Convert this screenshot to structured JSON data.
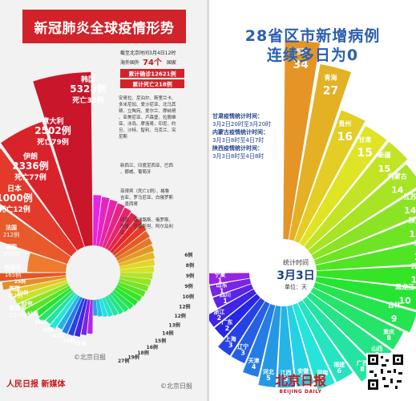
{
  "left": {
    "title": "新冠肺炎全球疫情形势",
    "info_line1": "截至北京时间3月4日12时",
    "info_line2_prefix": "海外国外",
    "info_line2_count": "74个",
    "info_line2_suffix": "国家",
    "total_confirmed": "累计确诊12621例",
    "total_deaths": "累计死亡218例",
    "note_small_countries": "安哥拉、尼泊尔、斯里兰卡、多米尼加、爱沙尼亚、北马其顿、立陶宛、爱尔兰、摩纳哥、亚美尼亚、卢森堡、拉脱维亚、冰岛、摩洛哥、印尼、约旦、沙特、智利、乌克兰、突尼斯",
    "note_group1": "新西兰、印度尼西亚、巴西、挪威、葡萄牙",
    "note_group2": "菲律宾（死亡1例）、格鲁吉亚、罗马尼亚、白俄罗斯、墨西哥",
    "note_group3": "印度、塞浦路斯、俄罗斯、丹麦、巴基斯坦、阿尔及利亚",
    "watermark1": "©北京日报",
    "logo_text": "人民日报 新媒体",
    "colors": {
      "title_bg": "#d2232a"
    }
  },
  "right": {
    "title_line1": "28省区市新增病例",
    "title_line2": "连续多日为0",
    "note_gansu": "甘肃疫情统计时间：",
    "note_gansu_time": "3月2日20时至3月20时",
    "note_nmg": "内蒙古疫情统计时间：",
    "note_nmg_time": "3月3日8时至4日7时",
    "note_sx": "陕西疫情统计时间：",
    "note_sx_time": "3月3日8时至4日8时",
    "center_label": "统计时间",
    "center_date": "3月3日",
    "center_unit": "单位：天",
    "logo_name": "北京日报",
    "logo_en": "BEIJING DAILY",
    "watermark": "©北京日报"
  },
  "chart_data": [
    {
      "type": "bar",
      "subtype": "polar-rose",
      "title": "新冠肺炎全球疫情形势",
      "categories": [
        "韩国",
        "意大利",
        "伊朗",
        "日本",
        "法国",
        "德国",
        "西班牙",
        "美国",
        "新加坡",
        "中国香港",
        "瑞士",
        "英国",
        "科威特",
        "泰国",
        "巴林",
        "马来西亚",
        "澳大利亚",
        "挪威",
        "荷兰",
        "瑞典",
        "卡塔尔"
      ],
      "values": [
        5328,
        2502,
        2336,
        1000,
        212,
        196,
        165,
        122,
        110,
        100,
        90,
        51,
        56,
        43,
        49,
        36,
        41,
        40,
        38,
        30,
        25
      ],
      "labels": [
        "韩国\n5328例\n死亡33例",
        "意大利\n2502例\n死亡79例",
        "伊朗\n2336例\n死亡77例",
        "日本\n1000例\n死亡12例",
        "法国\n212例",
        "德国\n196例",
        "西班牙\n165例",
        "美国\n122例",
        "新加坡\n110例",
        "中国香港",
        "瑞士",
        "英国",
        "51例",
        "56例",
        "43例",
        "49例",
        "36例",
        "41例",
        "40例",
        "30例",
        "25例"
      ],
      "outer_labels": [
        "6例",
        "8例",
        "9例",
        "9例",
        "10例",
        "12例",
        "12例",
        "13例",
        "14例",
        "15例",
        "16例",
        "18例",
        "19例",
        "27例"
      ]
    },
    {
      "type": "bar",
      "subtype": "polar-rose",
      "title": "28省区市新增病例连续多日为0",
      "unit": "天",
      "categories": [
        "西藏",
        "青海",
        "贵州",
        "甘肃",
        "新疆",
        "内蒙古",
        "江苏",
        "陕西",
        "海南",
        "云南",
        "黑龙江",
        "吉林",
        "重庆",
        "山西",
        "广西",
        "福建",
        "河南",
        "安徽",
        "江西",
        "河北",
        "天津",
        "辽宁",
        "上海",
        "广东",
        "浙江",
        "四川",
        "山东",
        "宁夏"
      ],
      "values": [
        34,
        27,
        16,
        15,
        15,
        14,
        14,
        13,
        13,
        12,
        10,
        9,
        8,
        8,
        8,
        6,
        6,
        5,
        5,
        5,
        4,
        3,
        3,
        2,
        2,
        1,
        1,
        1
      ]
    }
  ]
}
